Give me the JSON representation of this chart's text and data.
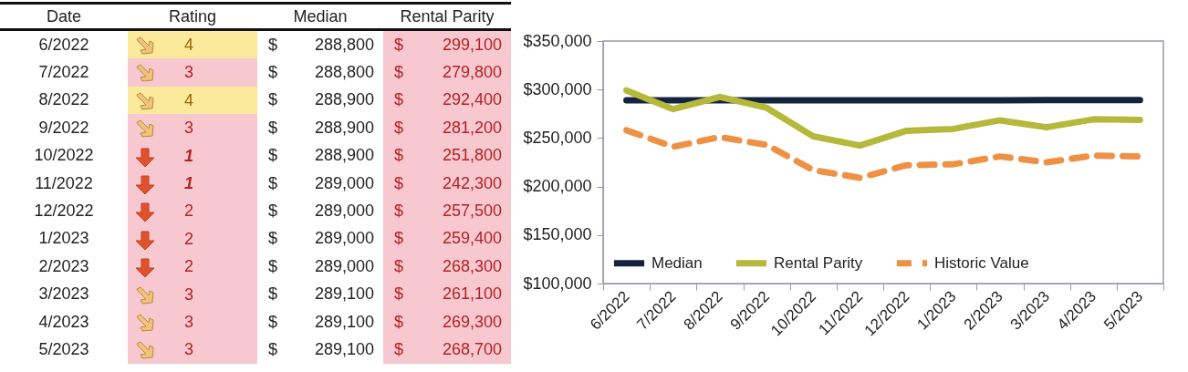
{
  "chart_data": {
    "type": "line",
    "categories": [
      "6/2022",
      "7/2022",
      "8/2022",
      "9/2022",
      "10/2022",
      "11/2022",
      "12/2022",
      "1/2023",
      "2/2023",
      "3/2023",
      "4/2023",
      "5/2023"
    ],
    "series": [
      {
        "name": "Median",
        "color": "#14243f",
        "values": [
          288800,
          288800,
          288900,
          288900,
          288900,
          289000,
          289000,
          289000,
          289000,
          289100,
          289100,
          289100
        ],
        "value_labels": [
          "$ 288,800",
          "$ 288,800",
          "$ 288,900",
          "$ 288,900",
          "$ 288,900",
          "$ 289,000",
          "$ 289,000",
          "$ 289,000",
          "$ 289,000",
          "$ 289,100",
          "$ 289,100",
          "$ 289,100"
        ]
      },
      {
        "name": "Rental Parity",
        "color": "#b5b83a",
        "values": [
          299100,
          279800,
          292400,
          281200,
          251800,
          242300,
          257500,
          259400,
          268300,
          261100,
          269300,
          268700
        ],
        "value_labels": [
          "$ 299,100",
          "$ 279,800",
          "$ 292,400",
          "$ 281,200",
          "$ 251,800",
          "$ 242,300",
          "$ 257,500",
          "$ 259,400",
          "$ 268,300",
          "$ 261,100",
          "$ 269,300",
          "$ 268,700"
        ]
      },
      {
        "name": "Historic Value",
        "color": "#ef9145",
        "line_style": "dashed",
        "values": [
          258000,
          241000,
          251000,
          243000,
          217000,
          209000,
          222000,
          223000,
          231000,
          225000,
          232000,
          231000
        ]
      }
    ],
    "ylim": [
      100000,
      350000
    ],
    "yticks": [
      {
        "value": 100000,
        "label": "$100,000"
      },
      {
        "value": 150000,
        "label": "$150,000"
      },
      {
        "value": 200000,
        "label": "$200,000"
      },
      {
        "value": 250000,
        "label": "$250,000"
      },
      {
        "value": 300000,
        "label": "$300,000"
      },
      {
        "value": 350000,
        "label": "$350,000"
      }
    ],
    "grid": false,
    "legend": "bottom",
    "annotations": [
      "Date",
      "Rating",
      "4",
      "3",
      "4",
      "3",
      "1",
      "1",
      "2",
      "2",
      "2",
      "3",
      "3",
      "3"
    ]
  }
}
